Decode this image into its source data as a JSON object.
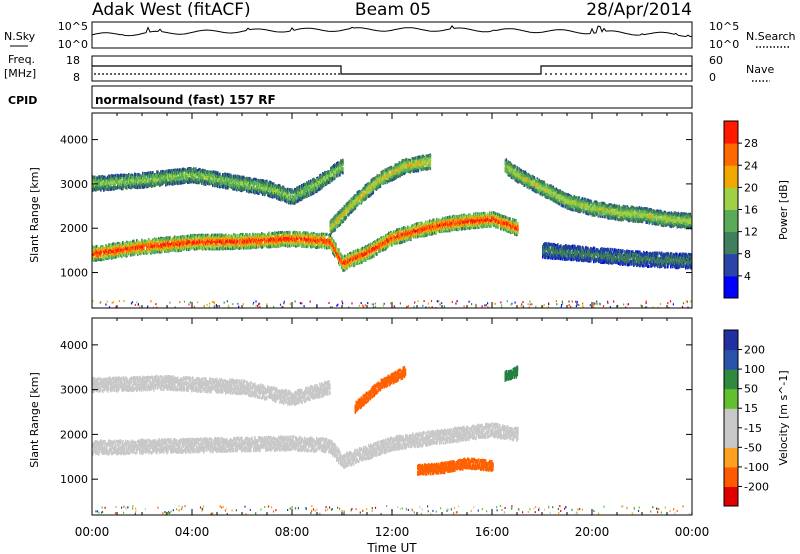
{
  "header": {
    "station": "Adak West (fitACF)",
    "beam": "Beam 05",
    "date": "28/Apr/2014"
  },
  "summary": {
    "nsky_label": "N.Sky",
    "nsky_ticks": [
      "10^5",
      "10^0"
    ],
    "nsearch_label": "N.Search",
    "nsearch_ticks": [
      "10^5",
      "10^0"
    ],
    "freq_label": "Freq.",
    "freq_unit": "[MHz]",
    "freq_ticks": [
      "18",
      "8"
    ],
    "nave_label": "Nave",
    "nave_ticks": [
      "60",
      "0"
    ],
    "cpid_label": "CPID",
    "cpid_text": "normalsound (fast) 157 RF"
  },
  "colors": {
    "power_scale": [
      "#0000ff",
      "#2040a0",
      "#3a7a5a",
      "#58b058",
      "#a0d040",
      "#f0a000",
      "#ff6000",
      "#ff2000",
      "#e00000"
    ],
    "velocity_scale": [
      "#e00000",
      "#ff6000",
      "#ffa020",
      "#c8c8c8",
      "#60c030",
      "#208040",
      "#2040a0"
    ],
    "ground_scatter": "#c8c8c8"
  },
  "chart_data": [
    {
      "type": "heatmap",
      "panel": "power",
      "ylabel": "Slant Range [km]",
      "yticks": [
        "1000",
        "2000",
        "3000",
        "4000"
      ],
      "ylim": [
        200,
        4600
      ],
      "xlim": [
        0,
        24
      ],
      "colorbar_label": "Power [dB]",
      "colorbar_ticks": [
        "4",
        "8",
        "12",
        "16",
        "20",
        "24",
        "28"
      ],
      "colorbar_range": [
        0,
        32
      ],
      "bands": [
        {
          "name": "lower band",
          "t": [
            0,
            2,
            4,
            6,
            8,
            9.5,
            10,
            11,
            12,
            13,
            14,
            15,
            16,
            17
          ],
          "r": [
            1420,
            1580,
            1680,
            1700,
            1760,
            1700,
            1200,
            1450,
            1780,
            1950,
            2080,
            2150,
            2200,
            2000
          ],
          "level": 26
        },
        {
          "name": "upper band",
          "t": [
            0,
            2,
            4,
            6,
            7,
            8,
            9,
            10
          ],
          "r": [
            3000,
            3080,
            3200,
            3000,
            2900,
            2700,
            3000,
            3400
          ],
          "level": 14
        },
        {
          "name": "late band",
          "t": [
            16.5,
            17,
            18,
            19,
            20,
            21,
            22,
            23,
            24
          ],
          "r": [
            3400,
            3200,
            2900,
            2600,
            2450,
            2350,
            2300,
            2200,
            2150
          ],
          "level": 16
        },
        {
          "name": "late lower band",
          "t": [
            18,
            20,
            22,
            24
          ],
          "r": [
            1500,
            1400,
            1300,
            1250
          ],
          "level": 8
        },
        {
          "name": "slant streak",
          "t": [
            9.5,
            10.5,
            11.5,
            12.5,
            13.5
          ],
          "r": [
            2000,
            2600,
            3100,
            3400,
            3500
          ],
          "level": 18
        }
      ]
    },
    {
      "type": "heatmap",
      "panel": "velocity",
      "ylabel": "Slant Range [km]",
      "yticks": [
        "1000",
        "2000",
        "3000",
        "4000"
      ],
      "ylim": [
        200,
        4600
      ],
      "xlim": [
        0,
        24
      ],
      "xticks": [
        "00:00",
        "04:00",
        "08:00",
        "12:00",
        "16:00",
        "20:00",
        "00:00"
      ],
      "xlabel": "Time UT",
      "colorbar_label": "Velocity [m s^-1]",
      "colorbar_ticks": [
        "200",
        "100",
        "50",
        "15",
        "-15",
        "-50",
        "-100",
        "-200"
      ],
      "colorbar_range": [
        -250,
        250
      ],
      "regions": [
        {
          "name": "ground scatter lower",
          "t": [
            0,
            4,
            8,
            9.5,
            10,
            12,
            14,
            16,
            17
          ],
          "r": [
            1700,
            1750,
            1800,
            1750,
            1400,
            1800,
            1950,
            2100,
            2000
          ],
          "velocity": 0
        },
        {
          "name": "ground scatter upper",
          "t": [
            0,
            3,
            6,
            8,
            9.5
          ],
          "r": [
            3100,
            3150,
            3050,
            2800,
            3050
          ],
          "velocity": 0
        },
        {
          "name": "orange streak",
          "t": [
            10.5,
            11.5,
            12.5
          ],
          "r": [
            2600,
            3100,
            3400
          ],
          "velocity": -60
        },
        {
          "name": "orange patch",
          "t": [
            13,
            14,
            15,
            16
          ],
          "r": [
            1200,
            1250,
            1350,
            1300
          ],
          "velocity": -70
        },
        {
          "name": "green patch",
          "t": [
            16.5,
            17
          ],
          "r": [
            3300,
            3400
          ],
          "velocity": 60
        }
      ]
    }
  ]
}
